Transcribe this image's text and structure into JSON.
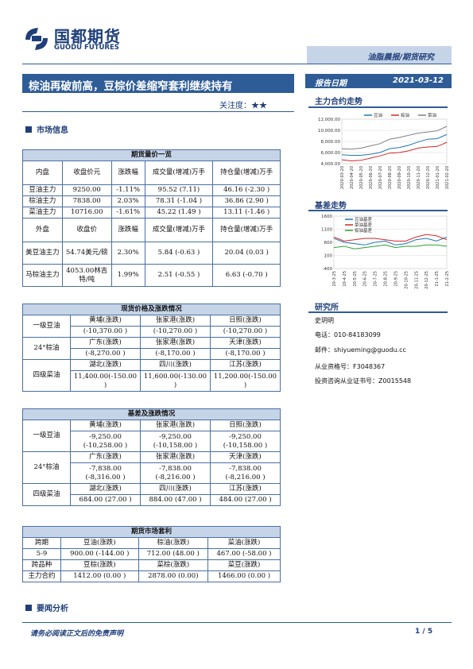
{
  "header": {
    "logo_cn": "国都期货",
    "logo_en": "GUODU FUTURES",
    "category": "油脂晨报/期货研究",
    "report_date_label": "报告日期",
    "report_date": "2021-03-12"
  },
  "title": "棕油再破前高，豆棕价差缩窄套利继续持有",
  "attention_label": "关注度：",
  "attention_stars": "★★",
  "market_info_heading": "市场信息",
  "futures_table": {
    "caption": "期货量价一览",
    "head_domestic": [
      "内盘",
      "收盘价元",
      "涨跌幅",
      "成交量(增减)万手",
      "持仓量(增减)万手"
    ],
    "domestic_rows": [
      [
        "豆油主力",
        "9250.00",
        "-1.11%",
        "95.52 (7.11)",
        "46.16 (-2.30 )"
      ],
      [
        "棕油主力",
        "7838.00",
        "2.03%",
        "78.31 (-1.04 )",
        "36.86 (2.90 )"
      ],
      [
        "菜油主力",
        "10716.00",
        "-1.61%",
        "45.22 (1.49 )",
        "13.11 (-1.46 )"
      ]
    ],
    "head_foreign": [
      "外盘",
      "收盘价",
      "涨跌幅",
      "成交量(增减)万手",
      "持仓量(增减)万手"
    ],
    "foreign_rows": [
      [
        "美豆油主力",
        "54.74美元/磅",
        "2.30%",
        "5.84 (-0.63 )",
        "20.04 (0.03 )"
      ],
      [
        "马棕油主力",
        "4053.00林吉特/吨",
        "1.99%",
        "2.51 (-0.55 )",
        "6.63 (-0.70 )"
      ]
    ]
  },
  "spot_table": {
    "caption": "现货价格及涨跌情况",
    "groups": [
      {
        "name": "一级豆油",
        "places": [
          "黄埔(涨跌)",
          "张家港(涨跌)",
          "日照(涨跌)"
        ],
        "values": [
          "(-10,370.00 )",
          "(-10,270.00 )",
          "(-10,270.00 )"
        ]
      },
      {
        "name": "24°棕油",
        "places": [
          "广东(涨跌)",
          "张家港(涨跌)",
          "天津(涨跌)"
        ],
        "values": [
          "(-8,270.00 )",
          "(-8,170.00 )",
          "(-8,170.00 )"
        ]
      },
      {
        "name": "四级菜油",
        "places": [
          "湖北(涨跌)",
          "四川(涨跌)",
          "江苏(涨跌)"
        ],
        "values": [
          "11,400.00(-150.00 )",
          "11,600.00(-130.00 )",
          "11,200.00(-150.00 )"
        ]
      }
    ]
  },
  "basis_table": {
    "caption": "基差及涨跌情况",
    "groups": [
      {
        "name": "一级豆油",
        "places": [
          "黄埔(涨跌)",
          "张家港(涨跌)",
          "日照(涨跌)"
        ],
        "values": [
          "-9,250.00 (-10,258.00 )",
          "-9,250.00 (-10,158.00 )",
          "-9,250.00 (-10,158.00 )"
        ]
      },
      {
        "name": "24°棕油",
        "places": [
          "广东(涨跌)",
          "张家港(涨跌)",
          "天津(涨跌)"
        ],
        "values": [
          "-7,838.00 (-8,316.00 )",
          "-7,838.00 (-8,216.00 )",
          "-7,838.00 (-8,216.00 )"
        ]
      },
      {
        "name": "四级菜油",
        "places": [
          "湖北(涨跌)",
          "四川(涨跌)",
          "江苏(涨跌)"
        ],
        "values": [
          "684.00 (27.00 )",
          "884.00 (47.00 )",
          "484.00 (27.00 )"
        ]
      }
    ]
  },
  "arb_table": {
    "caption": "期货市场套利",
    "row1": [
      "跨期",
      "豆油(涨跌)",
      "棕油(涨跌)",
      "菜油(涨跌)"
    ],
    "row2": [
      "5-9",
      "900.00 (-144.00 )",
      "712.00 (48.00 )",
      "467.00 (-58.00 )"
    ],
    "row3": [
      "跨品种",
      "豆棕(涨跌)",
      "菜棕(涨跌)",
      "菜豆(涨跌)"
    ],
    "row4": [
      "主力合约",
      "1412.00 (0.00 )",
      "2878.00 (0.00)",
      "1466.00 (0.00 )"
    ]
  },
  "news_heading": "要闻分析",
  "footer": {
    "disclaimer": "请务必阅读正文后的免责声明",
    "page": "1 / 5"
  },
  "sidebar": {
    "contract_heading": "主力合约走势",
    "basis_heading": "基差走势",
    "research_heading": "研究所",
    "analyst": "史玥明",
    "phone": "电话：010-84183099",
    "email": "邮件：shiyueming@guodu.cc",
    "cert": "从业资格号：F3048367",
    "advisor": "投资咨询从业证书号：Z0015548"
  },
  "chart_data": [
    {
      "type": "line",
      "title": "",
      "x": [
        "2020-03-20",
        "2020-04-20",
        "2020-05-20",
        "2020-06-20",
        "2020-07-20",
        "2020-08-20",
        "2020-09-20",
        "2020-10-20",
        "2020-11-20",
        "2020-12-20",
        "2021-01-20",
        "2021-02-20"
      ],
      "series": [
        {
          "name": "豆油",
          "color": "#1f77b4",
          "values": [
            5600,
            5500,
            5500,
            5700,
            6000,
            6700,
            6900,
            7300,
            7900,
            8400,
            8500,
            9250
          ]
        },
        {
          "name": "棕油",
          "color": "#d62728",
          "values": [
            4700,
            4500,
            4600,
            5000,
            5400,
            5900,
            6000,
            6300,
            6800,
            7000,
            7100,
            7838
          ]
        },
        {
          "name": "菜油",
          "color": "#7f7f7f",
          "values": [
            6700,
            6600,
            6800,
            7200,
            7600,
            8400,
            8700,
            9100,
            9500,
            9700,
            9900,
            10716
          ]
        }
      ],
      "yticks": [
        "4,000.00",
        "6,000.00",
        "8,000.00",
        "10,000.00",
        "12,000.00"
      ],
      "ylim": [
        4000,
        12000
      ]
    },
    {
      "type": "line",
      "title": "",
      "x": [
        "20-3-25",
        "20-4-25",
        "20-5-25",
        "20-6-25",
        "20-7-25",
        "20-8-25",
        "20-9-25",
        "20-10-25",
        "20-11-25",
        "20-12-25",
        "21-1-25",
        "21-2-25"
      ],
      "series": [
        {
          "name": "豆油基差",
          "color": "#1f77b4",
          "values": [
            750,
            600,
            550,
            500,
            600,
            650,
            500,
            550,
            700,
            750,
            650,
            800
          ]
        },
        {
          "name": "菜油基差",
          "color": "#d62728",
          "values": [
            800,
            650,
            700,
            750,
            750,
            700,
            650,
            650,
            800,
            900,
            850,
            700
          ]
        },
        {
          "name": "棕油基差",
          "color": "#2ca02c",
          "values": [
            400,
            450,
            350,
            400,
            450,
            500,
            400,
            450,
            450,
            500,
            500,
            450
          ]
        }
      ],
      "yticks": [
        "-400",
        "100",
        "600",
        "1100",
        "1600"
      ],
      "ylim": [
        -400,
        1600
      ]
    }
  ]
}
